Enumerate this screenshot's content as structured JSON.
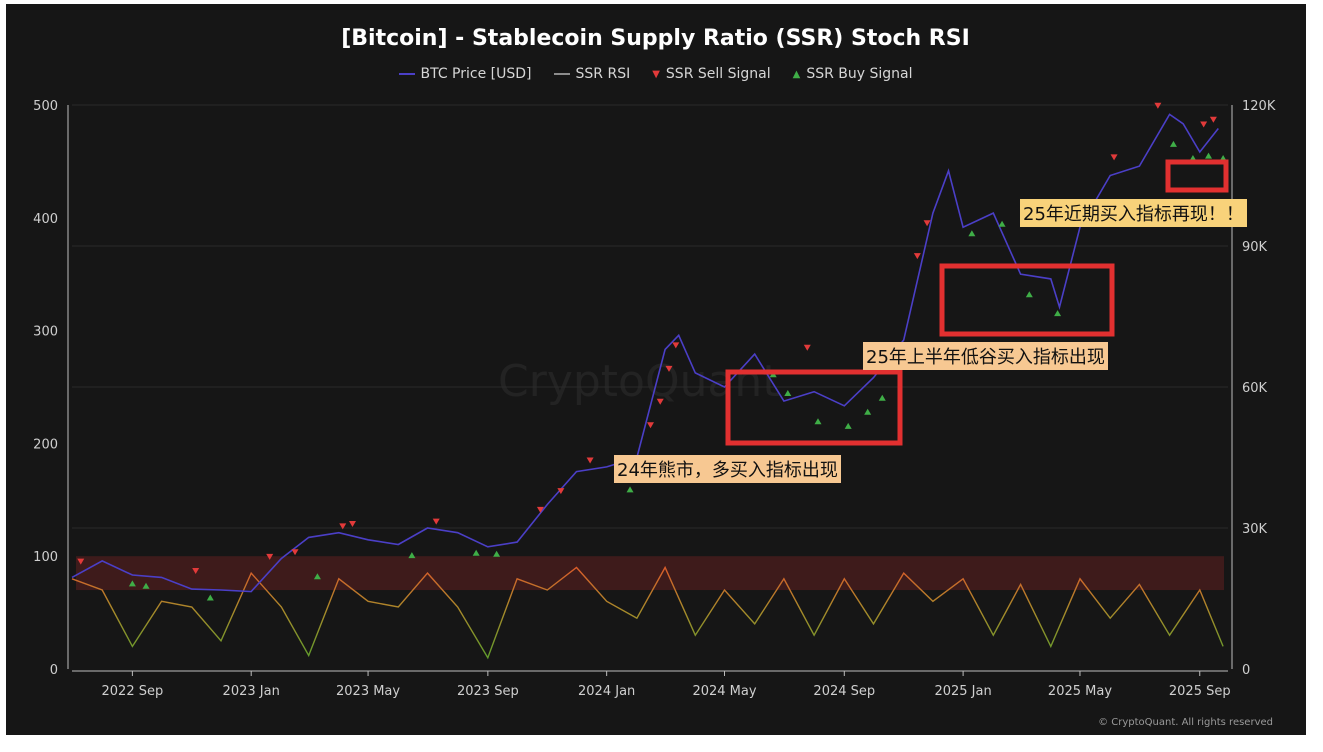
{
  "title": "[Bitcoin] - Stablecoin Supply Ratio (SSR) Stoch RSI",
  "legend": [
    {
      "label": "BTC Price [USD]",
      "color": "#4b3fc7",
      "kind": "line"
    },
    {
      "label": "SSR RSI",
      "color": "#8c8c8c",
      "kind": "line"
    },
    {
      "label": "SSR Sell Signal",
      "color": "#e23a3a",
      "kind": "tri-down"
    },
    {
      "label": "SSR Buy Signal",
      "color": "#3fae47",
      "kind": "tri-up"
    }
  ],
  "annotations": {
    "bear_2024": "24年熊市，多买入指标出现",
    "h1_2025": "25年上半年低谷买入指标出现",
    "recent_2025": "25年近期买入指标再现！！"
  },
  "watermark": "CryptoQuant",
  "credit": "© CryptoQuant. All rights reserved",
  "chart_data": {
    "type": "line",
    "x_range": [
      "2022-07-01",
      "2025-09-30"
    ],
    "x_ticks": [
      "2022 Sep",
      "2023 Jan",
      "2023 May",
      "2023 Sep",
      "2024 Jan",
      "2024 May",
      "2024 Sep",
      "2025 Jan",
      "2025 May",
      "2025 Sep"
    ],
    "y_left": {
      "range": [
        0,
        500
      ],
      "ticks": [
        "0",
        "100",
        "200",
        "300",
        "400",
        "500"
      ]
    },
    "y_right": {
      "range": [
        0,
        120000
      ],
      "ticks": [
        "0",
        "30K",
        "60K",
        "90K",
        "120K"
      ]
    },
    "overbought_band": [
      70,
      100
    ],
    "series": [
      {
        "name": "BTC Price [USD]",
        "axis": "right",
        "x": [
          "2022-07-01",
          "2022-08-01",
          "2022-09-01",
          "2022-10-01",
          "2022-11-01",
          "2022-12-01",
          "2023-01-01",
          "2023-02-01",
          "2023-03-01",
          "2023-04-01",
          "2023-05-01",
          "2023-06-01",
          "2023-07-01",
          "2023-08-01",
          "2023-09-01",
          "2023-10-01",
          "2023-11-01",
          "2023-12-01",
          "2024-01-01",
          "2024-02-01",
          "2024-03-01",
          "2024-03-15",
          "2024-04-01",
          "2024-05-01",
          "2024-06-01",
          "2024-07-01",
          "2024-08-01",
          "2024-09-01",
          "2024-10-01",
          "2024-11-01",
          "2024-12-01",
          "2024-12-17",
          "2025-01-01",
          "2025-02-01",
          "2025-03-01",
          "2025-04-01",
          "2025-04-10",
          "2025-05-01",
          "2025-06-01",
          "2025-07-01",
          "2025-08-01",
          "2025-08-15",
          "2025-09-01",
          "2025-09-20"
        ],
        "values": [
          19500,
          23000,
          20000,
          19500,
          17000,
          16800,
          16500,
          23500,
          28000,
          29000,
          27500,
          26500,
          30000,
          29000,
          26000,
          27000,
          35000,
          42000,
          43000,
          45000,
          68000,
          71000,
          63000,
          60000,
          67000,
          57000,
          59000,
          56000,
          62000,
          70000,
          97000,
          106000,
          94000,
          97000,
          84000,
          83000,
          77000,
          94000,
          105000,
          107000,
          118000,
          116000,
          110000,
          115000
        ]
      },
      {
        "name": "SSR RSI",
        "axis": "left",
        "x": [
          "2022-07-01",
          "2022-08-01",
          "2022-09-01",
          "2022-10-01",
          "2022-11-01",
          "2022-12-01",
          "2023-01-01",
          "2023-02-01",
          "2023-03-01",
          "2023-04-01",
          "2023-05-01",
          "2023-06-01",
          "2023-07-01",
          "2023-08-01",
          "2023-09-01",
          "2023-10-01",
          "2023-11-01",
          "2023-12-01",
          "2024-01-01",
          "2024-02-01",
          "2024-03-01",
          "2024-04-01",
          "2024-05-01",
          "2024-06-01",
          "2024-07-01",
          "2024-08-01",
          "2024-09-01",
          "2024-10-01",
          "2024-11-01",
          "2024-12-01",
          "2025-01-01",
          "2025-02-01",
          "2025-03-01",
          "2025-04-01",
          "2025-05-01",
          "2025-06-01",
          "2025-07-01",
          "2025-08-01",
          "2025-09-01",
          "2025-09-25"
        ],
        "values": [
          80,
          70,
          20,
          60,
          55,
          25,
          85,
          55,
          12,
          80,
          60,
          55,
          85,
          55,
          10,
          80,
          70,
          90,
          60,
          45,
          90,
          30,
          70,
          40,
          80,
          30,
          80,
          40,
          85,
          60,
          80,
          30,
          75,
          20,
          80,
          45,
          75,
          30,
          70,
          20
        ]
      }
    ],
    "sell_signals_usd": [
      {
        "x": "2022-07-10",
        "y": 22000
      },
      {
        "x": "2022-11-05",
        "y": 20000
      },
      {
        "x": "2023-01-20",
        "y": 23000
      },
      {
        "x": "2023-02-15",
        "y": 24000
      },
      {
        "x": "2023-04-05",
        "y": 29500
      },
      {
        "x": "2023-04-15",
        "y": 30000
      },
      {
        "x": "2023-07-10",
        "y": 30500
      },
      {
        "x": "2023-10-25",
        "y": 33000
      },
      {
        "x": "2023-11-15",
        "y": 37000
      },
      {
        "x": "2023-12-15",
        "y": 43500
      },
      {
        "x": "2024-02-15",
        "y": 51000
      },
      {
        "x": "2024-02-25",
        "y": 56000
      },
      {
        "x": "2024-03-05",
        "y": 63000
      },
      {
        "x": "2024-03-12",
        "y": 68000
      },
      {
        "x": "2024-07-25",
        "y": 67500
      },
      {
        "x": "2024-10-20",
        "y": 63000
      },
      {
        "x": "2024-11-15",
        "y": 87000
      },
      {
        "x": "2024-11-25",
        "y": 94000
      },
      {
        "x": "2025-05-10",
        "y": 94000
      },
      {
        "x": "2025-05-20",
        "y": 98000
      },
      {
        "x": "2025-06-05",
        "y": 108000
      },
      {
        "x": "2025-07-20",
        "y": 119000
      },
      {
        "x": "2025-09-05",
        "y": 115000
      },
      {
        "x": "2025-09-15",
        "y": 116000
      }
    ],
    "buy_signals_usd": [
      {
        "x": "2022-09-01",
        "y": 19500
      },
      {
        "x": "2022-09-15",
        "y": 19000
      },
      {
        "x": "2022-11-20",
        "y": 16500
      },
      {
        "x": "2023-03-10",
        "y": 21000
      },
      {
        "x": "2023-06-15",
        "y": 25500
      },
      {
        "x": "2023-08-20",
        "y": 26000
      },
      {
        "x": "2023-09-10",
        "y": 25800
      },
      {
        "x": "2024-01-25",
        "y": 39500
      },
      {
        "x": "2024-06-20",
        "y": 64000
      },
      {
        "x": "2024-07-05",
        "y": 60000
      },
      {
        "x": "2024-08-05",
        "y": 54000
      },
      {
        "x": "2024-09-05",
        "y": 53000
      },
      {
        "x": "2024-09-25",
        "y": 56000
      },
      {
        "x": "2024-10-10",
        "y": 59000
      },
      {
        "x": "2025-01-10",
        "y": 94000
      },
      {
        "x": "2025-02-10",
        "y": 96000
      },
      {
        "x": "2025-03-10",
        "y": 81000
      },
      {
        "x": "2025-04-08",
        "y": 77000
      },
      {
        "x": "2025-08-05",
        "y": 113000
      },
      {
        "x": "2025-08-25",
        "y": 110000
      },
      {
        "x": "2025-09-10",
        "y": 110500
      },
      {
        "x": "2025-09-25",
        "y": 110000
      }
    ]
  }
}
